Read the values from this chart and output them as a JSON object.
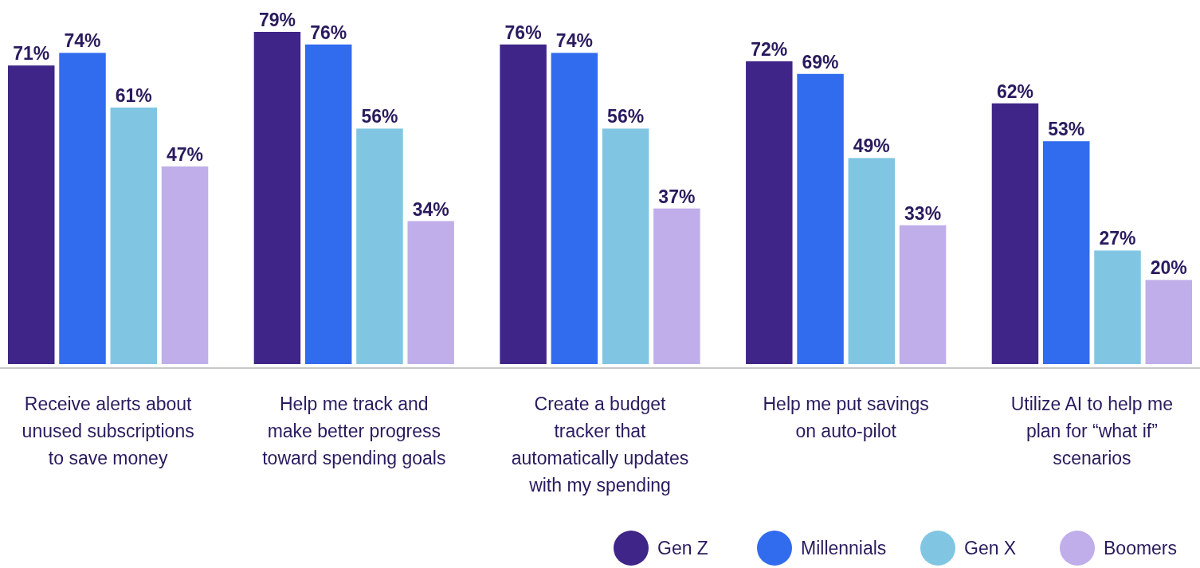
{
  "chart_data": {
    "type": "bar",
    "categories": [
      "Receive alerts about unused subscriptions to save money",
      "Help me track and make better progress toward spending goals",
      "Create a budget tracker that automatically updates with my spending",
      "Help me put savings on auto-pilot",
      "Utilize AI to help me plan for “what if” scenarios"
    ],
    "series": [
      {
        "name": "Gen Z",
        "color": "#3f2587",
        "values": [
          71,
          79,
          76,
          72,
          62
        ],
        "value_labels": [
          "71%",
          "79%",
          "76%",
          "72%",
          "62%"
        ]
      },
      {
        "name": "Millennials",
        "color": "#316bee",
        "values": [
          74,
          76,
          74,
          69,
          53
        ],
        "value_labels": [
          "74%",
          "76%",
          "74%",
          "69%",
          "53%"
        ]
      },
      {
        "name": "Gen X",
        "color": "#80c6e3",
        "values": [
          61,
          56,
          56,
          49,
          27
        ],
        "value_labels": [
          "61%",
          "56%",
          "56%",
          "49%",
          "27%"
        ]
      },
      {
        "name": "Boomers",
        "color": "#bfaee9",
        "values": [
          47,
          34,
          37,
          33,
          20
        ],
        "value_labels": [
          "47%",
          "34%",
          "37%",
          "33%",
          "20%"
        ]
      }
    ],
    "legend": "bottom right"
  }
}
